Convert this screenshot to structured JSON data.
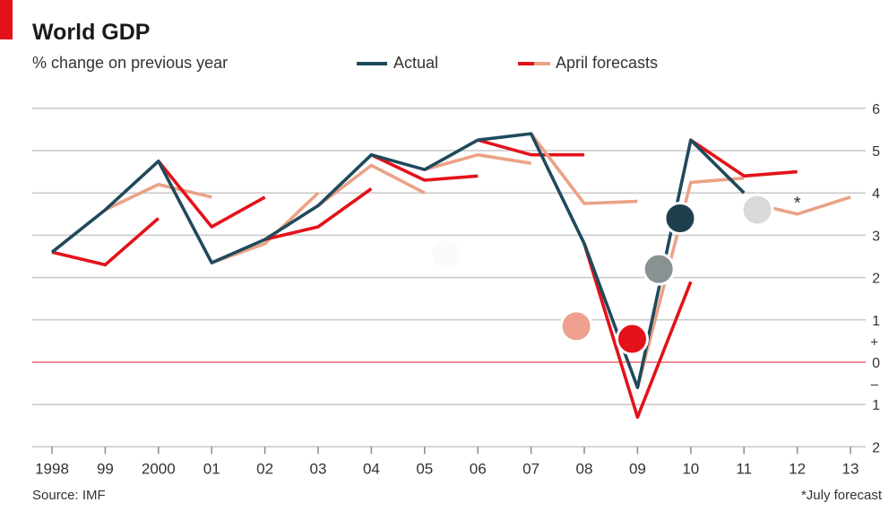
{
  "colors": {
    "actual": "#1f4a5c",
    "april_red": "#e3121a",
    "april_salmon": "#eaa286",
    "grid": "#c9c9c9",
    "zero_line": "#e8656a",
    "brand_tag": "#e3121a",
    "axis_text": "#333333"
  },
  "chart_data": {
    "type": "line",
    "title": "World GDP",
    "subtitle": "% change on previous year",
    "source": "Source: IMF",
    "footnote": "*July forecast",
    "asterisk": "*",
    "legend": {
      "placement": "top",
      "items": [
        {
          "label": "Actual",
          "series": "actual"
        },
        {
          "label": "April forecasts",
          "series": "forecasts"
        }
      ]
    },
    "x_ticks": [
      {
        "x": 1998,
        "label": "1998"
      },
      {
        "x": 1999,
        "label": "99"
      },
      {
        "x": 2000,
        "label": "2000"
      },
      {
        "x": 2001,
        "label": "01"
      },
      {
        "x": 2002,
        "label": "02"
      },
      {
        "x": 2003,
        "label": "03"
      },
      {
        "x": 2004,
        "label": "04"
      },
      {
        "x": 2005,
        "label": "05"
      },
      {
        "x": 2006,
        "label": "06"
      },
      {
        "x": 2007,
        "label": "07"
      },
      {
        "x": 2008,
        "label": "08"
      },
      {
        "x": 2009,
        "label": "09"
      },
      {
        "x": 2010,
        "label": "10"
      },
      {
        "x": 2011,
        "label": "11"
      },
      {
        "x": 2012,
        "label": "12"
      },
      {
        "x": 2013,
        "label": "13"
      }
    ],
    "y_ticks": [
      {
        "y": 6,
        "label": "6"
      },
      {
        "y": 5,
        "label": "5"
      },
      {
        "y": 4,
        "label": "4"
      },
      {
        "y": 3,
        "label": "3"
      },
      {
        "y": 2,
        "label": "2"
      },
      {
        "y": 1,
        "label": "1"
      },
      {
        "y": 0,
        "label": "0"
      },
      {
        "y": -1,
        "label": "1"
      },
      {
        "y": -2,
        "label": "2"
      }
    ],
    "y_sign_labels": {
      "plus": "+",
      "minus": "–"
    },
    "xlim": [
      1998,
      2013
    ],
    "ylim": [
      -2,
      6
    ],
    "grid": true,
    "series": [
      {
        "name": "Actual",
        "color": "actual",
        "points": [
          [
            1998,
            2.6
          ],
          [
            1999,
            3.6
          ],
          [
            2000,
            4.75
          ],
          [
            2001,
            2.35
          ],
          [
            2002,
            2.9
          ],
          [
            2003,
            3.7
          ],
          [
            2004,
            4.9
          ],
          [
            2005,
            4.55
          ],
          [
            2006,
            5.25
          ],
          [
            2007,
            5.4
          ],
          [
            2008,
            2.8
          ],
          [
            2009,
            -0.6
          ],
          [
            2010,
            5.25
          ],
          [
            2011,
            4.0
          ]
        ]
      },
      {
        "color": "april_red",
        "points": [
          [
            1998,
            2.6
          ],
          [
            1999,
            2.3
          ],
          [
            2000,
            3.4
          ]
        ]
      },
      {
        "color": "april_salmon",
        "points": [
          [
            1999,
            3.6
          ],
          [
            2000,
            4.2
          ],
          [
            2001,
            3.9
          ]
        ]
      },
      {
        "color": "april_red",
        "points": [
          [
            2000,
            4.75
          ],
          [
            2001,
            3.2
          ],
          [
            2002,
            3.9
          ]
        ]
      },
      {
        "color": "april_salmon",
        "points": [
          [
            2001,
            2.35
          ],
          [
            2002,
            2.8
          ],
          [
            2003,
            4.0
          ]
        ]
      },
      {
        "color": "april_red",
        "points": [
          [
            2002,
            2.9
          ],
          [
            2003,
            3.2
          ],
          [
            2004,
            4.1
          ]
        ]
      },
      {
        "color": "april_salmon",
        "points": [
          [
            2003,
            3.7
          ],
          [
            2004,
            4.65
          ],
          [
            2005,
            4.0
          ]
        ]
      },
      {
        "color": "april_red",
        "points": [
          [
            2004,
            4.9
          ],
          [
            2005,
            4.3
          ],
          [
            2006,
            4.4
          ]
        ]
      },
      {
        "color": "april_salmon",
        "points": [
          [
            2005,
            4.55
          ],
          [
            2006,
            4.9
          ],
          [
            2007,
            4.7
          ]
        ]
      },
      {
        "color": "april_red",
        "points": [
          [
            2006,
            5.25
          ],
          [
            2007,
            4.9
          ],
          [
            2008,
            4.9
          ]
        ]
      },
      {
        "color": "april_salmon",
        "points": [
          [
            2007,
            5.4
          ],
          [
            2008,
            3.75
          ],
          [
            2009,
            3.8
          ]
        ]
      },
      {
        "color": "april_red",
        "points": [
          [
            2008,
            2.8
          ],
          [
            2009,
            -1.3
          ],
          [
            2010,
            1.9
          ]
        ]
      },
      {
        "color": "april_salmon",
        "points": [
          [
            2009,
            -0.6
          ],
          [
            2010,
            4.25
          ],
          [
            2011,
            4.35
          ]
        ]
      },
      {
        "color": "april_red",
        "points": [
          [
            2010,
            5.25
          ],
          [
            2011,
            4.4
          ],
          [
            2012,
            4.5
          ]
        ]
      },
      {
        "color": "april_salmon",
        "points": [
          [
            2011,
            3.8
          ],
          [
            2012,
            3.5
          ],
          [
            2013,
            3.9
          ]
        ]
      }
    ],
    "markers": [
      {
        "x": 2007.85,
        "y": 0.85,
        "color": "#f0a08e",
        "outline": "#ffffff"
      },
      {
        "x": 2008.9,
        "y": 0.55,
        "color": "#e3121a",
        "outline": "#ffffff"
      },
      {
        "x": 2009.4,
        "y": 2.2,
        "color": "#8a9192",
        "outline": "#ffffff"
      },
      {
        "x": 2009.8,
        "y": 3.4,
        "color": "#1f3e4e",
        "outline": "#ffffff"
      },
      {
        "x": 2011.25,
        "y": 3.6,
        "color": "#d9d9d9",
        "outline": "#ffffff"
      },
      {
        "x": 2005.4,
        "y": 2.55,
        "color": "#fafafa",
        "outline": "#ffffff"
      }
    ],
    "asterisk_position": {
      "x": 2012.0,
      "y": 3.75
    }
  }
}
